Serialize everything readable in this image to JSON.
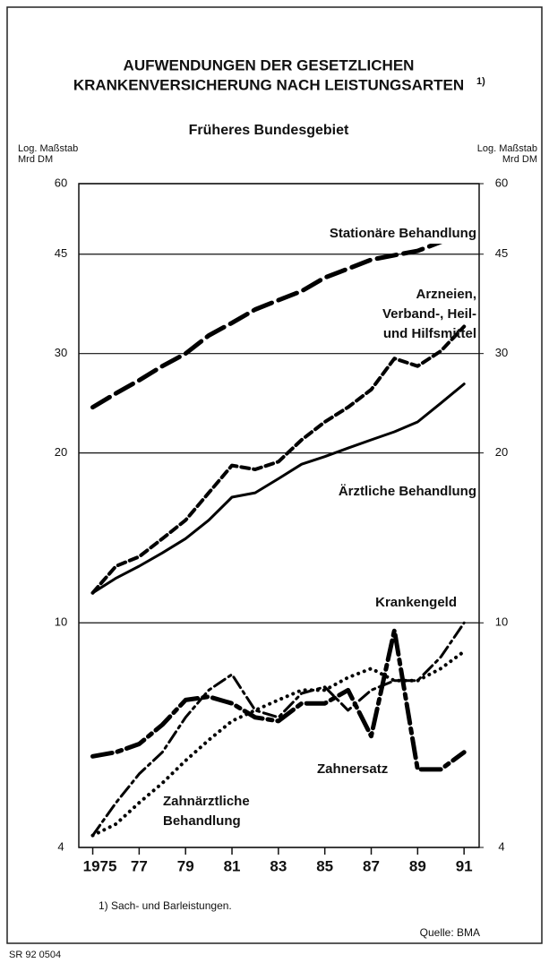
{
  "chart_data": {
    "type": "line",
    "title_lines": [
      "AUFWENDUNGEN DER GESETZLICHEN",
      "KRANKENVERSICHERUNG NACH LEISTUNGSARTEN"
    ],
    "title_note": "1)",
    "subtitle": "Früheres Bundesgebiet",
    "y_axis_label": [
      "Log. Maßstab",
      "Mrd DM"
    ],
    "y2_axis_label": [
      "Log. Maßstab",
      "Mrd DM"
    ],
    "footnote": "1) Sach- und Barleistungen.",
    "source": "Quelle: BMA",
    "code": "SR 92 0504",
    "log_scale": true,
    "grid": true,
    "x": [
      1975,
      1976,
      1977,
      1978,
      1979,
      1980,
      1981,
      1982,
      1983,
      1984,
      1985,
      1986,
      1987,
      1988,
      1989,
      1990,
      1991
    ],
    "xlim": [
      1974.4,
      1991.65
    ],
    "xticks": [
      1975,
      {
        "value": 1977,
        "label": "77"
      },
      {
        "value": 1979,
        "label": "79"
      },
      {
        "value": 1981,
        "label": "81"
      },
      {
        "value": 1983,
        "label": "83"
      },
      {
        "value": 1985,
        "label": "85"
      },
      {
        "value": 1987,
        "label": "87"
      },
      {
        "value": 1989,
        "label": "89"
      },
      {
        "value": 1991,
        "label": "91"
      }
    ],
    "ylim": [
      4,
      60
    ],
    "yticks": [
      4,
      10,
      20,
      30,
      45,
      60
    ],
    "y2lim": [
      4,
      60
    ],
    "y2ticks": [
      4,
      10,
      20,
      30,
      45,
      60
    ],
    "series": [
      {
        "name": "Stationäre Behandlung",
        "color": "#000000",
        "values": [
          24.1,
          25.5,
          26.9,
          28.5,
          30,
          32.3,
          34,
          35.9,
          37.3,
          38.7,
          40.9,
          42.4,
          44,
          44.8,
          45.6,
          47.3,
          50
        ]
      },
      {
        "name": "Arzneien, Verband-, Heil- und Hilfsmittel",
        "color": "#000000",
        "values": [
          11.3,
          12.6,
          13.1,
          14.1,
          15.2,
          17,
          19,
          18.7,
          19.3,
          21.1,
          22.7,
          24.1,
          25.9,
          29.4,
          28.5,
          30.3,
          33.5
        ]
      },
      {
        "name": "Ärztliche Behandlung",
        "color": "#000000",
        "values": [
          11.3,
          12,
          12.6,
          13.3,
          14.1,
          15.2,
          16.7,
          17,
          18,
          19.1,
          19.7,
          20.4,
          21.1,
          21.8,
          22.7,
          24.5,
          26.5
        ]
      },
      {
        "name": "Krankengeld",
        "color": "#000000",
        "values": [
          4.2,
          4.8,
          5.4,
          5.9,
          6.8,
          7.6,
          8.1,
          7,
          6.8,
          7.5,
          7.7,
          7,
          7.6,
          7.9,
          7.9,
          8.7,
          10
        ]
      },
      {
        "name": "Zahnersatz",
        "color": "#000000",
        "values": [
          5.8,
          5.9,
          6.1,
          6.6,
          7.3,
          7.4,
          7.2,
          6.8,
          6.7,
          7.2,
          7.2,
          7.6,
          6.3,
          9.7,
          5.5,
          5.5,
          5.9
        ]
      },
      {
        "name": "Zahnärztliche Behandlung",
        "color": "#000000",
        "values": [
          4.2,
          4.4,
          4.8,
          5.2,
          5.7,
          6.2,
          6.7,
          7,
          7.3,
          7.6,
          7.6,
          8,
          8.3,
          7.9,
          7.9,
          8.3,
          8.9
        ]
      }
    ]
  }
}
